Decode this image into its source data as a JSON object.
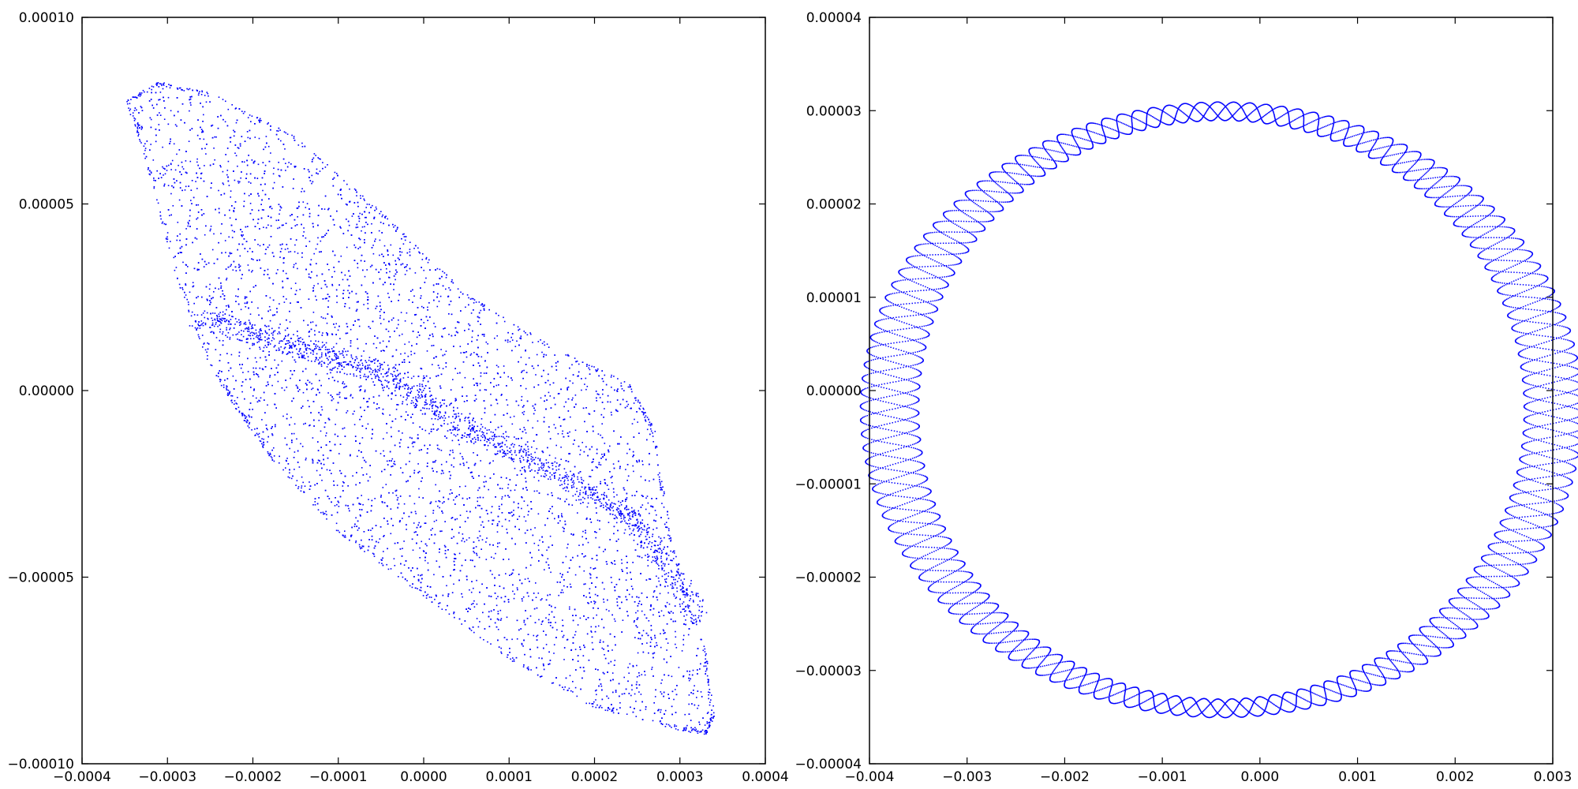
{
  "chart_data": [
    {
      "type": "scatter",
      "title": "",
      "xlabel": "",
      "ylabel": "",
      "xlim": [
        -0.0004,
        0.0004
      ],
      "ylim": [
        -0.0001,
        0.0001
      ],
      "grid": false,
      "marker_color": "#0000ff",
      "x_ticks": [
        -0.0004,
        -0.0003,
        -0.0002,
        -0.0001,
        0.0,
        0.0001,
        0.0002,
        0.0003,
        0.0004
      ],
      "x_tick_labels": [
        "−0.0004",
        "−0.0003",
        "−0.0002",
        "−0.0001",
        "0.0000",
        "0.0001",
        "0.0002",
        "0.0003",
        "0.0004"
      ],
      "y_ticks": [
        -0.0001,
        -5e-05,
        0.0,
        5e-05,
        0.0001
      ],
      "y_tick_labels": [
        "−0.00010",
        "−0.00005",
        "0.00000",
        "0.00005",
        "0.00010"
      ],
      "outline": [
        [
          -0.00035,
          7.8e-05
        ],
        [
          -0.00031,
          8.3e-05
        ],
        [
          -0.00025,
          8e-05
        ],
        [
          -0.00015,
          6.8e-05
        ],
        [
          -5e-05,
          4.8e-05
        ],
        [
          5e-05,
          2.6e-05
        ],
        [
          0.00015,
          1.2e-05
        ],
        [
          0.00024,
          2e-06
        ],
        [
          0.00027,
          -1e-05
        ],
        [
          0.00029,
          -4e-05
        ],
        [
          0.00033,
          -7e-05
        ],
        [
          0.00034,
          -8.7e-05
        ],
        [
          0.00033,
          -9.2e-05
        ],
        [
          0.0003,
          -9.1e-05
        ],
        [
          0.0002,
          -8.5e-05
        ],
        [
          0.0001,
          -7.2e-05
        ],
        [
          0.0,
          -5.5e-05
        ],
        [
          -0.0001,
          -3.8e-05
        ],
        [
          -0.00018,
          -1.8e-05
        ],
        [
          -0.00022,
          -5e-06
        ],
        [
          -0.00025,
          6e-06
        ],
        [
          -0.00029,
          3e-05
        ],
        [
          -0.00033,
          6.5e-05
        ]
      ],
      "band": [
        [
          -0.00027,
          2e-05
        ],
        [
          -0.00015,
          1.2e-05
        ],
        [
          -5e-05,
          5e-06
        ],
        [
          5e-05,
          -1e-05
        ],
        [
          0.00015,
          -2.2e-05
        ],
        [
          0.00025,
          -3.5e-05
        ],
        [
          0.00032,
          -6e-05
        ]
      ]
    },
    {
      "type": "scatter",
      "title": "",
      "xlabel": "",
      "ylabel": "",
      "xlim": [
        -0.004,
        0.003
      ],
      "ylim": [
        -4e-05,
        4e-05
      ],
      "grid": false,
      "marker_color": "#0000ff",
      "x_ticks": [
        -0.004,
        -0.003,
        -0.002,
        -0.001,
        0.0,
        0.001,
        0.002,
        0.003
      ],
      "x_tick_labels": [
        "−0.004",
        "−0.003",
        "−0.002",
        "−0.001",
        "0.000",
        "0.001",
        "0.002",
        "0.003"
      ],
      "y_ticks": [
        -4e-05,
        -3e-05,
        -2e-05,
        -1e-05,
        0.0,
        1e-05,
        2e-05,
        3e-05,
        4e-05
      ],
      "y_tick_labels": [
        "−0.00004",
        "−0.00003",
        "−0.00002",
        "−0.00001",
        "0.00000",
        "0.00001",
        "0.00002",
        "0.00003",
        "0.00004"
      ],
      "ring_center": [
        -0.0004,
        -2e-06
      ],
      "ring_radius_x": [
        0.0031,
        0.0037
      ],
      "ring_radius_y": [
        3.1e-05,
        3.3e-05
      ]
    }
  ]
}
